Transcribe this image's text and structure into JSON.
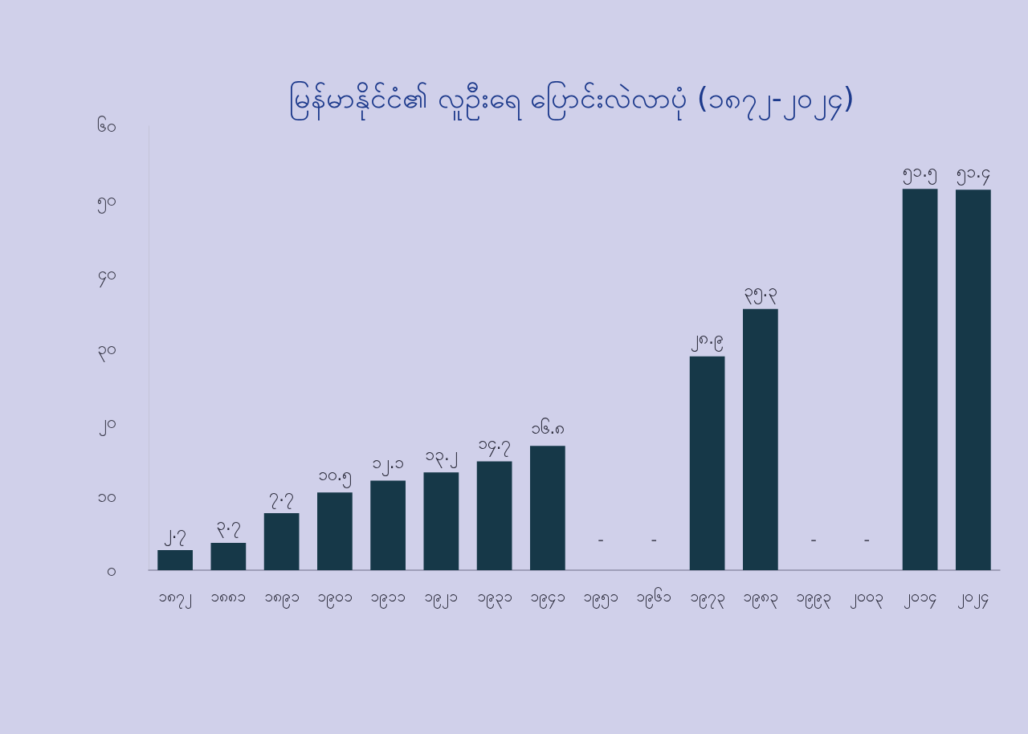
{
  "chart_data": {
    "type": "bar",
    "title": "မြန်မာနိုင်ငံ၏ လူဦးရေ ပြောင်းလဲလာပုံ (၁၈၇၂-၂၀၂၄)",
    "categories": [
      "၁၈၇၂",
      "၁၈၈၁",
      "၁၈၉၁",
      "၁၉၀၁",
      "၁၉၁၁",
      "၁၉၂၁",
      "၁၉၃၁",
      "၁၉၄၁",
      "၁၉၅၁",
      "၁၉၆၁",
      "၁၉၇၃",
      "၁၉၈၃",
      "၁၉၉၃",
      "၂၀၀၃",
      "၂၀၁၄",
      "၂၀၂၄"
    ],
    "values": [
      2.7,
      3.7,
      7.7,
      10.5,
      12.1,
      13.2,
      14.7,
      16.8,
      null,
      null,
      28.9,
      35.3,
      null,
      null,
      51.5,
      51.4
    ],
    "value_labels": [
      "၂.၇",
      "၃.၇",
      "၇.၇",
      "၁၀.၅",
      "၁၂.၁",
      "၁၃.၂",
      "၁၄.၇",
      "၁၆.၈",
      "-",
      "-",
      "၂၈.၉",
      "၃၅.၃",
      "-",
      "-",
      "၅၁.၅",
      "၅၁.၄"
    ],
    "color": "#163848",
    "ylim": [
      0,
      60
    ],
    "yticks": [
      {
        "value": 0,
        "label": "၀"
      },
      {
        "value": 10,
        "label": "၁၀"
      },
      {
        "value": 20,
        "label": "၂၀"
      },
      {
        "value": 30,
        "label": "၃၀"
      },
      {
        "value": 40,
        "label": "၄၀"
      },
      {
        "value": 50,
        "label": "၅၀"
      },
      {
        "value": 60,
        "label": "၆၀"
      }
    ]
  }
}
